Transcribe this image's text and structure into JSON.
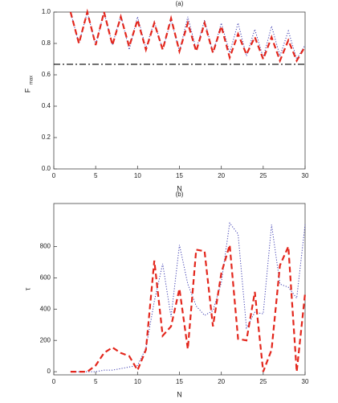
{
  "chart_data": [
    {
      "type": "line",
      "title": "(a)",
      "xlabel": "N",
      "ylabel": "F",
      "ylabel_subscript": "max",
      "xlim": [
        0,
        30
      ],
      "xticks": [
        0,
        5,
        10,
        15,
        20,
        25,
        30
      ],
      "ylim": [
        0,
        1
      ],
      "yticks": [
        {
          "value": 0,
          "label": "0.0"
        },
        0.2,
        0.4,
        0.6,
        0.8,
        {
          "value": 1,
          "label": "1.0"
        }
      ],
      "x": [
        2,
        3,
        4,
        5,
        6,
        7,
        8,
        9,
        10,
        11,
        12,
        13,
        14,
        15,
        16,
        17,
        18,
        19,
        20,
        21,
        22,
        23,
        24,
        25,
        26,
        27,
        28,
        29,
        30
      ],
      "series": [
        {
          "color": "#3b3bb0",
          "style": "dotted",
          "values": [
            1.0,
            0.8,
            1.0,
            0.79,
            1.0,
            0.79,
            0.98,
            0.76,
            0.97,
            0.77,
            0.94,
            0.76,
            0.95,
            0.75,
            0.97,
            0.76,
            0.95,
            0.74,
            0.93,
            0.74,
            0.93,
            0.72,
            0.89,
            0.71,
            0.91,
            0.72,
            0.88,
            0.7,
            0.79
          ]
        },
        {
          "color": "#e3261c",
          "style": "dashed",
          "values": [
            1.0,
            0.8,
            1.0,
            0.79,
            1.0,
            0.79,
            0.97,
            0.78,
            0.95,
            0.76,
            0.93,
            0.76,
            0.96,
            0.75,
            0.93,
            0.75,
            0.93,
            0.74,
            0.91,
            0.71,
            0.86,
            0.73,
            0.84,
            0.7,
            0.84,
            0.69,
            0.82,
            0.69,
            0.78
          ]
        }
      ],
      "hline": {
        "value": 0.667,
        "color": "#000000",
        "style": "dashdot"
      }
    },
    {
      "type": "line",
      "title": "(b)",
      "xlabel": "N",
      "ylabel": "τ",
      "xlim": [
        0,
        30
      ],
      "xticks": [
        0,
        5,
        10,
        15,
        20,
        25,
        30
      ],
      "ylim": [
        -20,
        1075
      ],
      "yticks": [
        0,
        200,
        400,
        600,
        800
      ],
      "x": [
        2,
        3,
        4,
        5,
        6,
        7,
        8,
        9,
        10,
        11,
        12,
        13,
        14,
        15,
        16,
        17,
        18,
        19,
        20,
        21,
        22,
        23,
        24,
        25,
        26,
        27,
        28,
        29,
        30
      ],
      "series": [
        {
          "color": "#3b3bb0",
          "style": "dotted",
          "values": [
            0,
            0,
            0,
            0,
            10,
            10,
            20,
            30,
            40,
            150,
            450,
            690,
            350,
            810,
            560,
            420,
            360,
            390,
            570,
            950,
            880,
            280,
            380,
            370,
            940,
            560,
            540,
            470,
            940
          ]
        },
        {
          "color": "#e3261c",
          "style": "dashed",
          "values": [
            0,
            0,
            0,
            40,
            120,
            155,
            120,
            100,
            10,
            140,
            710,
            230,
            290,
            530,
            145,
            780,
            770,
            290,
            630,
            810,
            210,
            200,
            510,
            0,
            140,
            680,
            800,
            0,
            500
          ]
        }
      ]
    }
  ]
}
